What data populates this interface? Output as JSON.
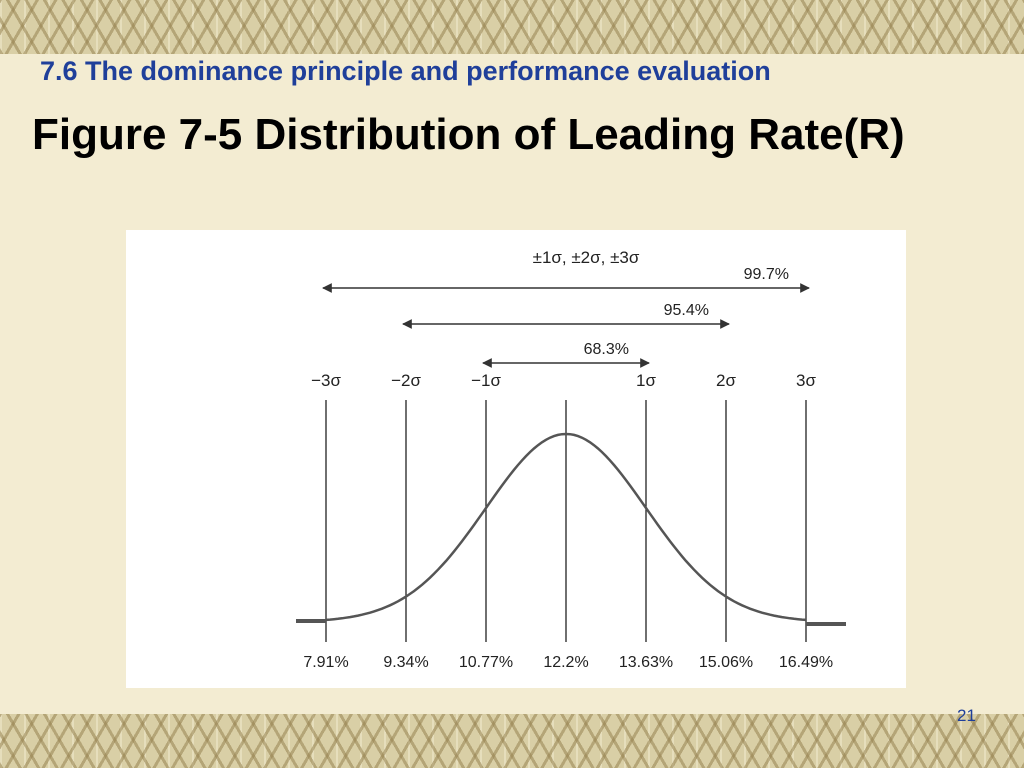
{
  "slide": {
    "subtitle": "7.6 The dominance principle and performance evaluation",
    "title": "Figure 7-5 Distribution of Leading Rate(R)",
    "page_number": "21"
  },
  "figure": {
    "heading": "±1σ, ±2σ, ±3σ",
    "ranges": [
      {
        "label": "99.7%",
        "from_sigma": -3,
        "to_sigma": 3
      },
      {
        "label": "95.4%",
        "from_sigma": -2,
        "to_sigma": 2
      },
      {
        "label": "68.3%",
        "from_sigma": -1,
        "to_sigma": 1
      }
    ],
    "sigma_labels": [
      "−3σ",
      "−2σ",
      "−1σ",
      "",
      "1σ",
      "2σ",
      "3σ"
    ],
    "value_labels": [
      "7.91%",
      "9.34%",
      "10.77%",
      "12.2%",
      "13.63%",
      "15.06%",
      "16.49%"
    ]
  }
}
